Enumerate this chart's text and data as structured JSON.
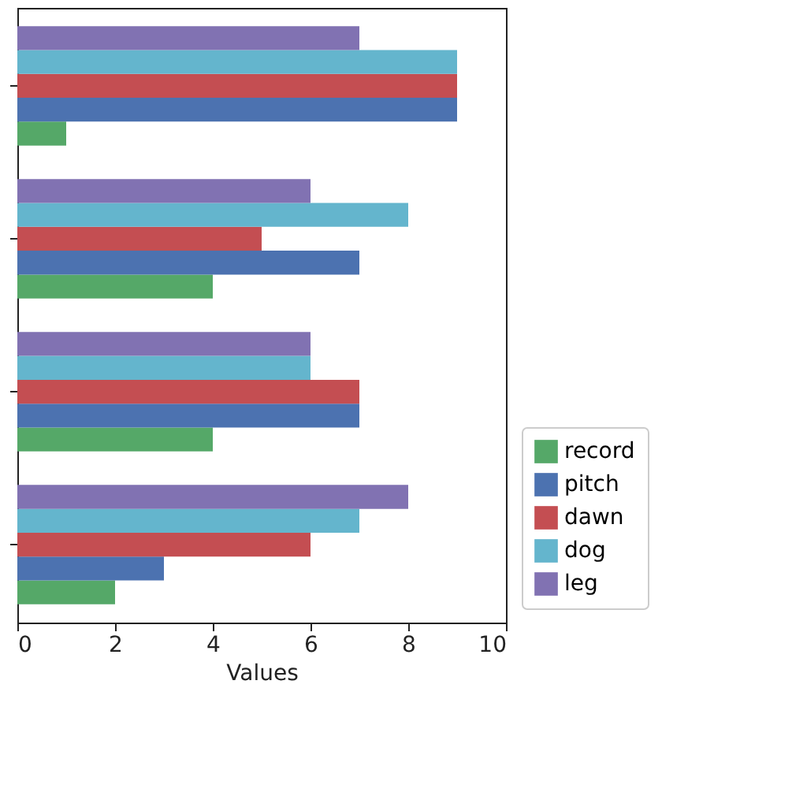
{
  "chart_data": {
    "type": "bar",
    "orientation": "horizontal",
    "xlabel": "Values",
    "categories": [
      null,
      null,
      null,
      null
    ],
    "series": [
      {
        "name": "record",
        "color": "#55a868",
        "values": [
          1,
          4,
          4,
          2
        ]
      },
      {
        "name": "pitch",
        "color": "#4c72b0",
        "values": [
          9,
          7,
          7,
          3
        ]
      },
      {
        "name": "dawn",
        "color": "#c44e52",
        "values": [
          9,
          5,
          7,
          6
        ]
      },
      {
        "name": "dog",
        "color": "#64b5cd",
        "values": [
          9,
          8,
          6,
          7
        ]
      },
      {
        "name": "leg",
        "color": "#8172b2",
        "values": [
          7,
          6,
          6,
          8
        ]
      }
    ],
    "xlim": [
      0,
      10
    ],
    "xticks": [
      0,
      2,
      4,
      6,
      8,
      10
    ],
    "tick_labels": "x",
    "legend": "bottom right"
  }
}
